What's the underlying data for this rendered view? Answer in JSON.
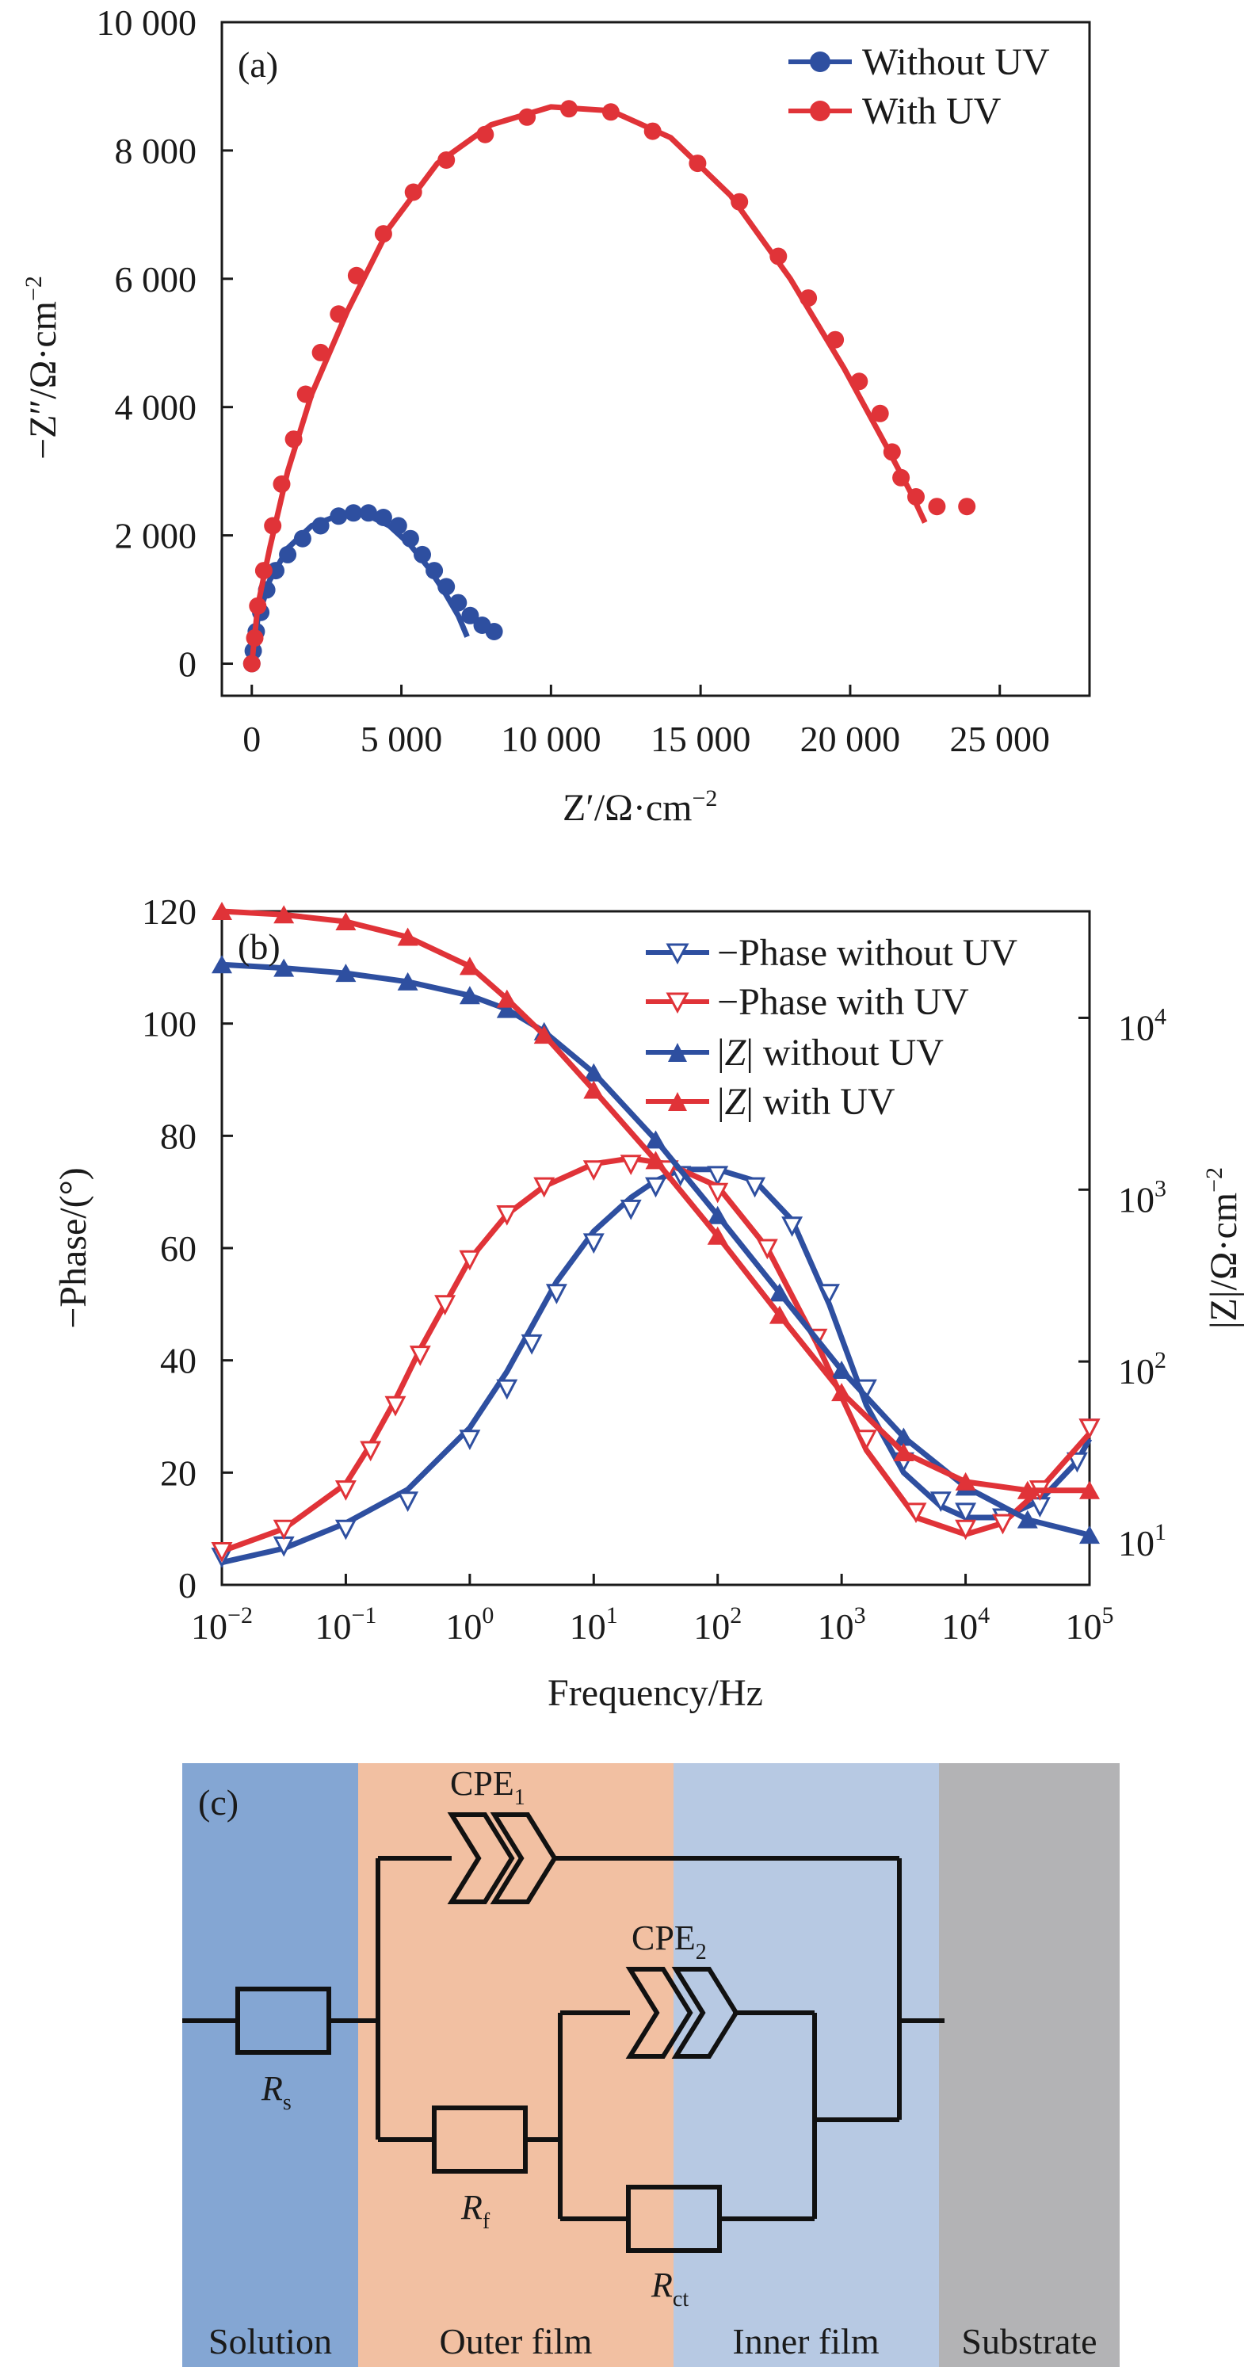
{
  "chart_data": [
    {
      "type": "scatter",
      "panel_label": "(a)",
      "xlabel_parts": [
        "Z′/Ω·cm",
        "−2"
      ],
      "ylabel_parts": [
        "−Z″/Ω·cm",
        "−2"
      ],
      "xlim": [
        -1000,
        28000
      ],
      "ylim": [
        -500,
        10000
      ],
      "x_ticks": [
        0,
        5000,
        10000,
        15000,
        20000,
        25000
      ],
      "x_tick_labels": [
        "0",
        "5 000",
        "10 000",
        "15 000",
        "20 000",
        "25 000"
      ],
      "y_ticks": [
        0,
        2000,
        4000,
        6000,
        8000,
        10000
      ],
      "y_tick_labels": [
        "0",
        "2 000",
        "4 000",
        "6 000",
        "8 000",
        "10 000"
      ],
      "series": [
        {
          "name": "Without UV",
          "color": "#2e4fa0",
          "points": [
            [
              0,
              0
            ],
            [
              50,
              200
            ],
            [
              150,
              500
            ],
            [
              300,
              800
            ],
            [
              500,
              1150
            ],
            [
              800,
              1450
            ],
            [
              1200,
              1700
            ],
            [
              1700,
              1950
            ],
            [
              2300,
              2150
            ],
            [
              2900,
              2300
            ],
            [
              3400,
              2350
            ],
            [
              3900,
              2350
            ],
            [
              4400,
              2280
            ],
            [
              4900,
              2150
            ],
            [
              5300,
              1950
            ],
            [
              5700,
              1700
            ],
            [
              6100,
              1450
            ],
            [
              6500,
              1200
            ],
            [
              6900,
              950
            ],
            [
              7300,
              750
            ],
            [
              7700,
              600
            ],
            [
              8100,
              500
            ]
          ],
          "fit": [
            [
              0,
              0
            ],
            [
              200,
              700
            ],
            [
              600,
              1300
            ],
            [
              1200,
              1800
            ],
            [
              2000,
              2150
            ],
            [
              3000,
              2330
            ],
            [
              3800,
              2330
            ],
            [
              4600,
              2150
            ],
            [
              5300,
              1850
            ],
            [
              5900,
              1500
            ],
            [
              6400,
              1150
            ],
            [
              6900,
              750
            ],
            [
              7200,
              420
            ]
          ]
        },
        {
          "name": "With UV",
          "color": "#e03338",
          "points": [
            [
              0,
              0
            ],
            [
              100,
              400
            ],
            [
              200,
              900
            ],
            [
              400,
              1450
            ],
            [
              700,
              2150
            ],
            [
              1000,
              2800
            ],
            [
              1400,
              3500
            ],
            [
              1800,
              4200
            ],
            [
              2300,
              4850
            ],
            [
              2900,
              5450
            ],
            [
              3500,
              6050
            ],
            [
              4400,
              6700
            ],
            [
              5400,
              7350
            ],
            [
              6500,
              7850
            ],
            [
              7800,
              8250
            ],
            [
              9200,
              8520
            ],
            [
              10600,
              8650
            ],
            [
              12000,
              8600
            ],
            [
              13400,
              8300
            ],
            [
              14900,
              7800
            ],
            [
              16300,
              7200
            ],
            [
              17600,
              6350
            ],
            [
              18600,
              5700
            ],
            [
              19500,
              5050
            ],
            [
              20300,
              4400
            ],
            [
              21000,
              3900
            ],
            [
              21400,
              3300
            ],
            [
              21700,
              2900
            ],
            [
              22200,
              2600
            ],
            [
              22900,
              2450
            ],
            [
              23900,
              2450
            ]
          ],
          "fit": [
            [
              0,
              0
            ],
            [
              200,
              900
            ],
            [
              600,
              1800
            ],
            [
              1200,
              3000
            ],
            [
              2000,
              4200
            ],
            [
              3200,
              5500
            ],
            [
              4600,
              6800
            ],
            [
              6200,
              7800
            ],
            [
              8000,
              8400
            ],
            [
              10000,
              8680
            ],
            [
              12000,
              8620
            ],
            [
              14000,
              8200
            ],
            [
              16000,
              7300
            ],
            [
              18000,
              6000
            ],
            [
              19800,
              4600
            ],
            [
              21200,
              3400
            ],
            [
              22100,
              2600
            ],
            [
              22500,
              2200
            ]
          ]
        }
      ]
    },
    {
      "type": "line",
      "panel_label": "(b)",
      "xlabel": "Frequency/Hz",
      "ylabel": "−Phase/(°)",
      "y2label": "|Z|/Ω·cm",
      "y2label_sup": "−2",
      "x_scale": "log10",
      "xlim_log": [
        -2,
        5
      ],
      "x_tick_labels": [
        [
          "10",
          "−2"
        ],
        [
          "10",
          "−1"
        ],
        [
          "10",
          "0"
        ],
        [
          "10",
          "1"
        ],
        [
          "10",
          "2"
        ],
        [
          "10",
          "3"
        ],
        [
          "10",
          "4"
        ],
        [
          "10",
          "5"
        ]
      ],
      "ylim": [
        0,
        120
      ],
      "y_ticks": [
        0,
        20,
        40,
        60,
        80,
        100,
        120
      ],
      "y2lim_log": [
        0.7,
        4.62
      ],
      "y2_tick_labels": [
        [
          "10",
          "1"
        ],
        [
          "10",
          "2"
        ],
        [
          "10",
          "3"
        ],
        [
          "10",
          "4"
        ]
      ],
      "series": [
        {
          "name": "−Phase without UV",
          "legend_prefix": "−Phase without UV",
          "axis": "left",
          "color": "#2e4fa0",
          "marker": "triangle-down-open",
          "logx": [
            -2,
            -1.5,
            -1,
            -0.5,
            0,
            0.3,
            0.5,
            0.7,
            1,
            1.3,
            1.5,
            1.7,
            2,
            2.3,
            2.6,
            2.9,
            3.2,
            3.5,
            3.8,
            4,
            4.3,
            4.6,
            4.9,
            5
          ],
          "values": [
            5,
            7,
            10,
            15,
            26,
            35,
            43,
            52,
            61,
            67,
            71,
            73,
            73,
            71,
            64,
            52,
            35,
            22,
            15,
            13,
            12,
            14,
            22,
            28
          ],
          "fit": [
            4,
            6.5,
            11,
            17,
            28,
            38,
            46,
            54,
            63,
            69,
            72,
            74,
            74,
            72,
            65,
            50,
            32,
            20,
            14,
            12,
            12,
            15,
            22,
            26
          ]
        },
        {
          "name": "−Phase with UV",
          "axis": "left",
          "color": "#e03338",
          "marker": "triangle-down-open",
          "logx": [
            -2,
            -1.5,
            -1,
            -0.8,
            -0.6,
            -0.4,
            -0.2,
            0,
            0.3,
            0.6,
            1,
            1.3,
            1.6,
            2,
            2.4,
            2.8,
            3.2,
            3.6,
            4,
            4.3,
            4.6,
            5
          ],
          "values": [
            6,
            10,
            17,
            24,
            32,
            41,
            50,
            58,
            66,
            71,
            74,
            75,
            74,
            70,
            60,
            44,
            26,
            13,
            10,
            11,
            17,
            28
          ],
          "fit": [
            6,
            10,
            18,
            25,
            33,
            42,
            50,
            58,
            66,
            71,
            75,
            76,
            75,
            71,
            60,
            43,
            24,
            12,
            9,
            11,
            17,
            27
          ]
        },
        {
          "name": "|Z| without UV",
          "legend_prefix": "|",
          "legend_italic": "Z",
          "legend_suffix": "| without UV",
          "axis": "right",
          "color": "#2e4fa0",
          "marker": "triangle-up-filled",
          "logx": [
            -2,
            -1.5,
            -1,
            -0.5,
            0,
            0.3,
            0.6,
            1,
            1.5,
            2,
            2.5,
            3,
            3.5,
            4,
            4.5,
            5
          ],
          "values_log10": [
            4.31,
            4.29,
            4.26,
            4.21,
            4.13,
            4.05,
            3.92,
            3.68,
            3.29,
            2.85,
            2.4,
            1.95,
            1.56,
            1.27,
            1.08,
            0.99
          ]
        },
        {
          "name": "|Z| with UV",
          "legend_prefix": "|",
          "legend_italic": "Z",
          "legend_suffix": "| with UV",
          "axis": "right",
          "color": "#e03338",
          "marker": "triangle-up-filled",
          "logx": [
            -2,
            -1.5,
            -1,
            -0.5,
            0,
            0.3,
            0.6,
            1,
            1.5,
            2,
            2.5,
            3,
            3.5,
            4,
            4.5,
            5
          ],
          "values_log10": [
            4.62,
            4.6,
            4.56,
            4.47,
            4.3,
            4.11,
            3.9,
            3.58,
            3.17,
            2.73,
            2.27,
            1.82,
            1.47,
            1.3,
            1.25,
            1.25
          ]
        }
      ]
    }
  ],
  "circuit": {
    "panel_label": "(c)",
    "regions": [
      {
        "label": "Solution",
        "color": "#84a6d3"
      },
      {
        "label": "Outer film",
        "color": "#f2c0a2"
      },
      {
        "label": "Inner film",
        "color": "#b7c9e3"
      },
      {
        "label": "Substrate",
        "color": "#b3b3b5"
      }
    ],
    "components": {
      "cpe1": {
        "main": "CPE",
        "sub": "1"
      },
      "cpe2": {
        "main": "CPE",
        "sub": "2"
      },
      "rs": {
        "main": "R",
        "sub": "s"
      },
      "rf": {
        "main": "R",
        "sub": "f"
      },
      "rct": {
        "main": "R",
        "sub": "ct"
      }
    }
  }
}
